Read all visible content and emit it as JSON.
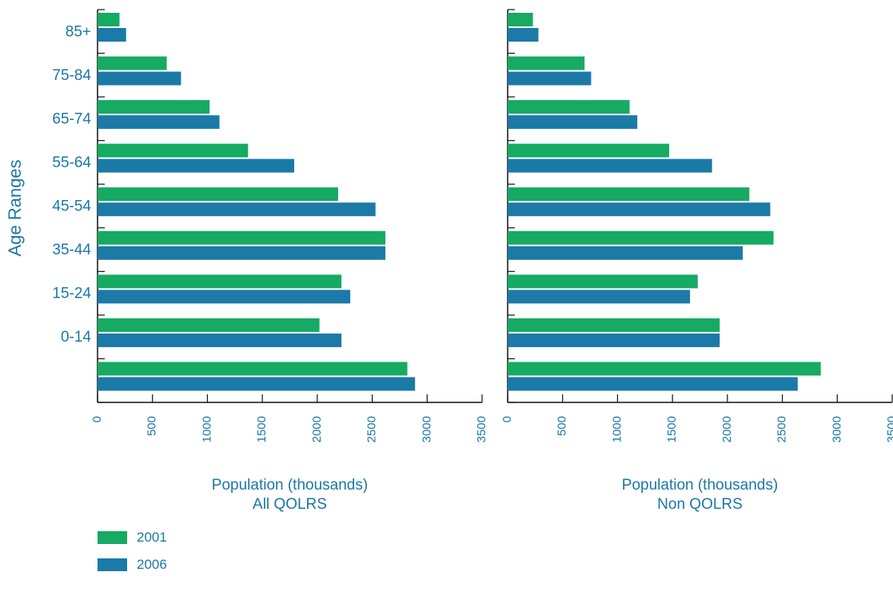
{
  "shared_ylabel": "Age Ranges",
  "legend": [
    {
      "name": "2001",
      "color": "#16aa63"
    },
    {
      "name": "2006",
      "color": "#1b7aa7"
    }
  ],
  "chart_data": [
    {
      "type": "bar",
      "orientation": "horizontal",
      "title": "",
      "xlabel": "Population (thousands)",
      "subtitle": "All QOLRS",
      "ylabel": "Age Ranges",
      "xlim": [
        0,
        3500
      ],
      "xticks": [
        "0",
        "500",
        "1000",
        "1500",
        "2000",
        "2500",
        "3000",
        "3500"
      ],
      "categories": [
        "85+",
        "75-84",
        "65-74",
        "55-64",
        "45-54",
        "35-44",
        "15-24",
        "0-14",
        ""
      ],
      "series": [
        {
          "name": "2001",
          "color": "#16aa63",
          "values": [
            200,
            630,
            1020,
            1370,
            2190,
            2620,
            2220,
            2020,
            2820
          ]
        },
        {
          "name": "2006",
          "color": "#1b7aa7",
          "values": [
            260,
            760,
            1110,
            1790,
            2530,
            2620,
            2300,
            2220,
            2890
          ]
        }
      ]
    },
    {
      "type": "bar",
      "orientation": "horizontal",
      "title": "",
      "xlabel": "Population (thousands)",
      "subtitle": "Non QOLRS",
      "ylabel": "",
      "xlim": [
        0,
        3500
      ],
      "xticks": [
        "0",
        "500",
        "1000",
        "1500",
        "2000",
        "2500",
        "3000",
        "3500"
      ],
      "categories": [
        "85+",
        "75-84",
        "65-74",
        "55-64",
        "45-54",
        "35-44",
        "15-24",
        "0-14",
        ""
      ],
      "series": [
        {
          "name": "2001",
          "color": "#16aa63",
          "values": [
            230,
            700,
            1110,
            1470,
            2200,
            2420,
            1730,
            1930,
            2850
          ]
        },
        {
          "name": "2006",
          "color": "#1b7aa7",
          "values": [
            280,
            760,
            1180,
            1860,
            2390,
            2140,
            1660,
            1930,
            2640
          ]
        }
      ]
    }
  ]
}
